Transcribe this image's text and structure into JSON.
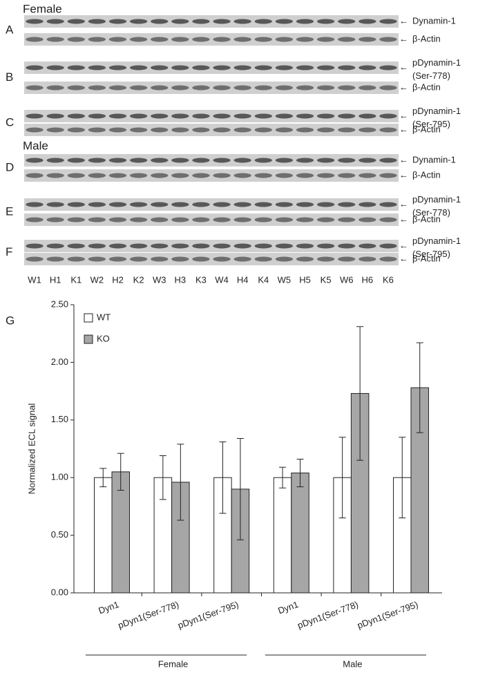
{
  "blots": {
    "female_label": "Female",
    "male_label": "Male",
    "lanes": [
      "W1",
      "H1",
      "K1",
      "W2",
      "H2",
      "K2",
      "W3",
      "H3",
      "K3",
      "W4",
      "H4",
      "K4",
      "W5",
      "H5",
      "K5",
      "W6",
      "H6",
      "K6"
    ],
    "panels": [
      {
        "letter": "A",
        "rows": [
          {
            "lines": [
              "Dynamin-1"
            ]
          },
          {
            "lines": [
              "β-Actin"
            ]
          }
        ]
      },
      {
        "letter": "B",
        "rows": [
          {
            "lines": [
              "pDynamin-1",
              "(Ser-778)"
            ]
          },
          {
            "lines": [
              "β-Actin"
            ]
          }
        ]
      },
      {
        "letter": "C",
        "rows": [
          {
            "lines": [
              "pDynamin-1",
              "(Ser-795)"
            ]
          },
          {
            "lines": [
              "β-Actin"
            ]
          }
        ]
      },
      {
        "letter": "D",
        "rows": [
          {
            "lines": [
              "Dynamin-1"
            ]
          },
          {
            "lines": [
              "β-Actin"
            ]
          }
        ]
      },
      {
        "letter": "E",
        "rows": [
          {
            "lines": [
              "pDynamin-1",
              "(Ser-778)"
            ]
          },
          {
            "lines": [
              "β-Actin"
            ]
          }
        ]
      },
      {
        "letter": "F",
        "rows": [
          {
            "lines": [
              "pDynamin-1",
              "(Ser-795)"
            ]
          },
          {
            "lines": [
              "β-Actin"
            ]
          }
        ]
      }
    ]
  },
  "chart_data": {
    "type": "bar",
    "panel_label": "G",
    "y_label": "Normalized ECL signal",
    "categories": [
      "Dyn1",
      "pDyn1(Ser-778)",
      "pDyn1(Ser-795)",
      "Dyn1",
      "pDyn1(Ser-778)",
      "pDyn1(Ser-795)"
    ],
    "group_labels": [
      "Female",
      "Male"
    ],
    "series": [
      {
        "name": "WT",
        "color": "#ffffff",
        "values": [
          1.0,
          1.0,
          1.0,
          1.0,
          1.0,
          1.0
        ],
        "errors": [
          0.08,
          0.19,
          0.31,
          0.09,
          0.35,
          0.35
        ]
      },
      {
        "name": "KO",
        "color": "#a6a6a6",
        "values": [
          1.05,
          0.96,
          0.9,
          1.04,
          1.73,
          1.78
        ],
        "errors": [
          0.16,
          0.33,
          0.44,
          0.12,
          0.58,
          0.39
        ]
      }
    ],
    "ylim": [
      0,
      2.5
    ],
    "yticks": [
      {
        "value": 0,
        "label": "0.00"
      },
      {
        "value": 0.5,
        "label": "0.50"
      },
      {
        "value": 1,
        "label": "1.00"
      },
      {
        "value": 1.5,
        "label": "1.50"
      },
      {
        "value": 2,
        "label": "2.00"
      },
      {
        "value": 2.5,
        "label": "2.50"
      }
    ],
    "legend": "upper left"
  }
}
